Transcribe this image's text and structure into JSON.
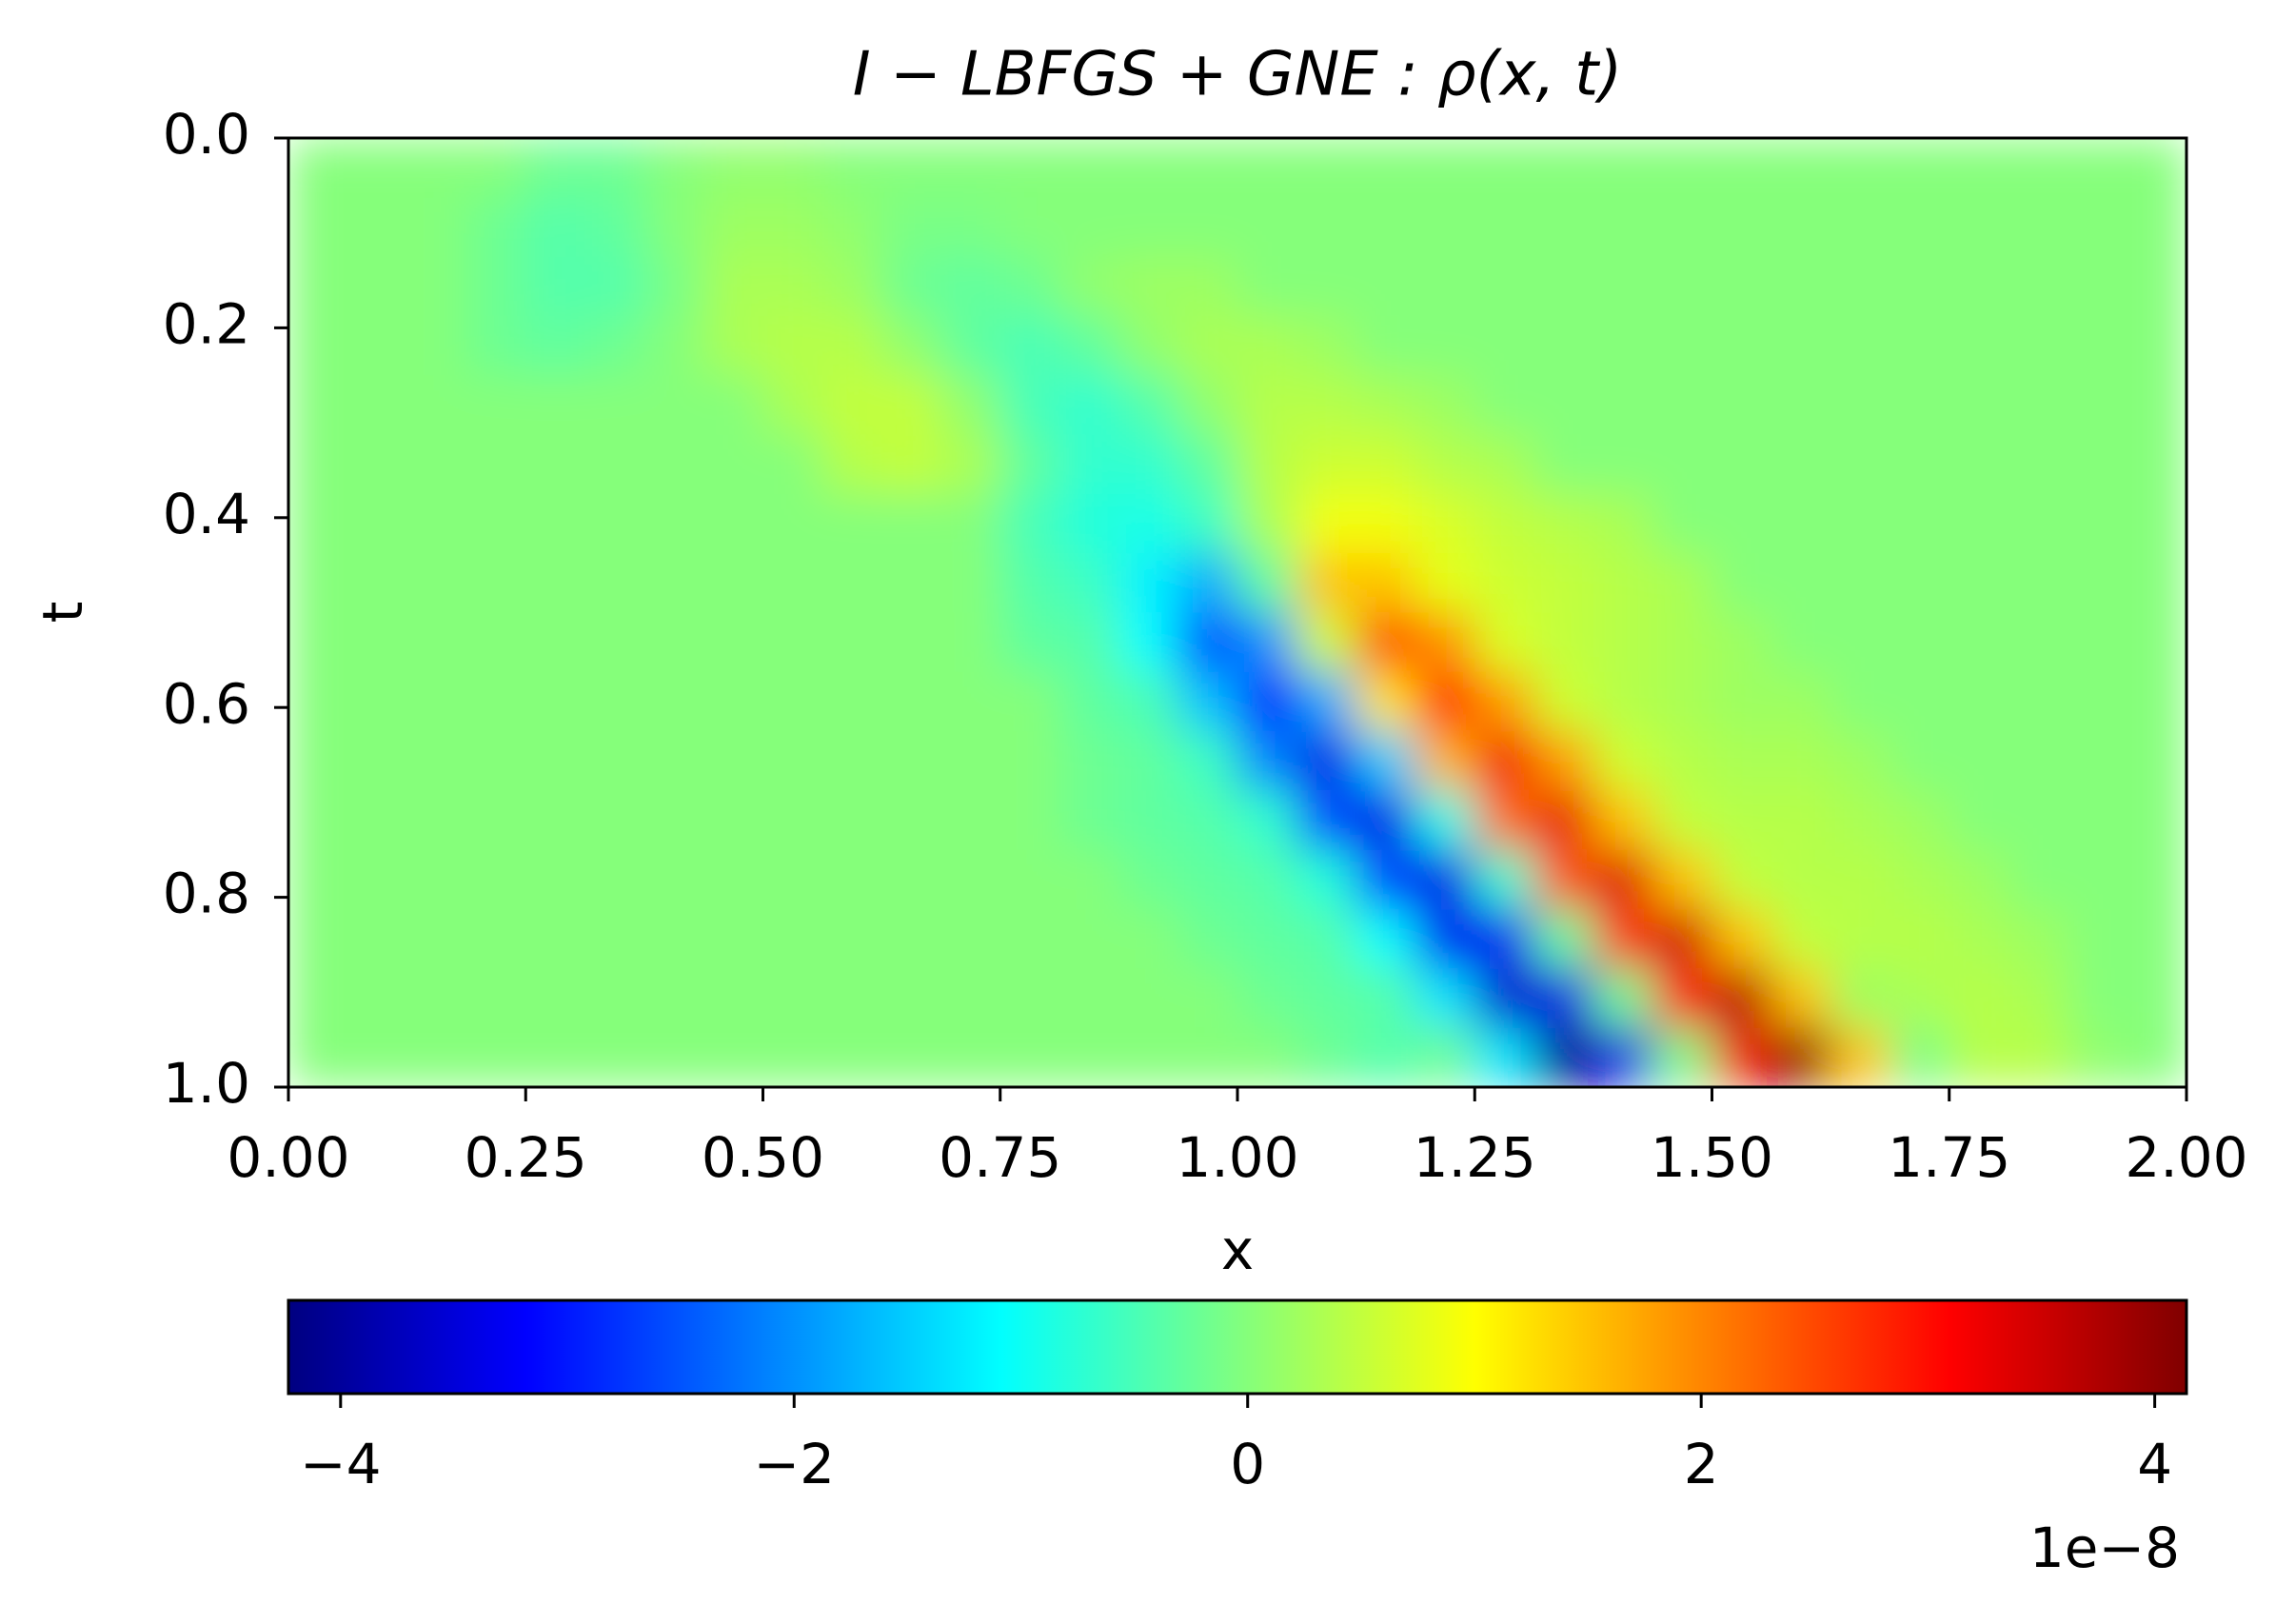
{
  "chart_data": {
    "type": "heatmap",
    "title": "I − LBFGS + GNE : ρ(x, t)",
    "xlabel": "x",
    "ylabel": "t",
    "xlim": [
      0,
      2
    ],
    "ylim": [
      0,
      1
    ],
    "invert_y": true,
    "xticks": [
      {
        "value": 0,
        "label": "0.00"
      },
      0.25,
      {
        "value": 0.5,
        "label": "0.50"
      },
      0.75,
      {
        "value": 1,
        "label": "1.00"
      },
      1.25,
      {
        "value": 1.5,
        "label": "1.50"
      },
      1.75,
      {
        "value": 2,
        "label": "2.00"
      }
    ],
    "yticks": [
      {
        "value": 0,
        "label": "0.0"
      },
      0.2,
      0.4,
      0.6,
      0.8,
      {
        "value": 1,
        "label": "1.0"
      }
    ],
    "colormap": "jet",
    "colorbar": {
      "lim": [
        -4.23,
        4.14
      ],
      "ticks": [
        {
          "value": -4,
          "label": "−4"
        },
        {
          "value": -2,
          "label": "−2"
        },
        0,
        2,
        4
      ],
      "offset_label": "1e−8"
    },
    "z": [
      [
        0,
        0,
        0,
        0,
        -0.2,
        -0.2,
        0,
        0.1,
        0.1,
        0,
        0,
        0,
        0,
        0,
        0,
        0,
        0,
        0,
        0,
        0,
        0,
        0,
        0,
        0,
        0,
        0,
        0,
        0,
        0,
        0,
        0,
        0
      ],
      [
        0,
        0,
        0,
        -0.2,
        -0.4,
        -0.3,
        0,
        0.2,
        0.2,
        0.1,
        -0.1,
        -0.1,
        0,
        0,
        0,
        0,
        0,
        0,
        0,
        0,
        0,
        0,
        0,
        0,
        0,
        0,
        0,
        0,
        0,
        0,
        0,
        0
      ],
      [
        0,
        0,
        0,
        -0.2,
        -0.4,
        -0.4,
        -0.1,
        0.3,
        0.3,
        0.2,
        -0.2,
        -0.3,
        -0.2,
        0.1,
        0.2,
        0.2,
        0,
        0,
        0,
        0,
        0,
        0,
        0,
        0,
        0,
        0,
        0,
        0,
        0,
        0,
        0,
        0
      ],
      [
        0,
        0,
        0,
        -0.2,
        -0.3,
        -0.2,
        0,
        0.3,
        0.4,
        0.4,
        0.1,
        -0.3,
        -0.5,
        -0.3,
        0.1,
        0.3,
        0.3,
        0.2,
        0,
        0,
        0,
        0,
        0,
        0,
        0,
        0,
        0,
        0,
        0,
        0,
        0,
        0
      ],
      [
        0,
        0,
        0,
        0,
        0,
        0,
        0,
        0,
        0.3,
        0.5,
        0.5,
        0.1,
        -0.5,
        -0.7,
        -0.4,
        0.1,
        0.4,
        0.4,
        0.3,
        0.2,
        0,
        0,
        0,
        0,
        0,
        0,
        0,
        0,
        0,
        0,
        0,
        0
      ],
      [
        0,
        0,
        0,
        0,
        0,
        0,
        0,
        0,
        0,
        0.4,
        0.5,
        0.3,
        -0.3,
        -0.7,
        -0.7,
        -0.3,
        0.4,
        0.6,
        0.6,
        0.4,
        0.3,
        0,
        0,
        0,
        0,
        0,
        0,
        0,
        0,
        0,
        0,
        0
      ],
      [
        0,
        0,
        0,
        0,
        0,
        0,
        0,
        0,
        0,
        0,
        0,
        0,
        -0.5,
        -0.8,
        -0.9,
        -0.6,
        0.3,
        0.9,
        0.9,
        0.7,
        0.5,
        0.4,
        0.3,
        0,
        0,
        0,
        0,
        0,
        0,
        0,
        0,
        0
      ],
      [
        0,
        0,
        0,
        0,
        0,
        0,
        0,
        0,
        0,
        0,
        0,
        0,
        -0.4,
        -0.6,
        -1.2,
        -1.8,
        -0.3,
        1.5,
        1.5,
        0.8,
        0.6,
        0.5,
        0.4,
        0.3,
        0,
        0,
        0,
        0,
        0,
        0,
        0,
        0
      ],
      [
        0,
        0,
        0,
        0,
        0,
        0,
        0,
        0,
        0,
        0,
        0,
        0,
        -0.3,
        -0.4,
        -1.1,
        -2.6,
        -2.0,
        0.6,
        2.5,
        1.9,
        0.7,
        0.5,
        0.4,
        0.3,
        0.2,
        0,
        0,
        0,
        0,
        0,
        0,
        0
      ],
      [
        0,
        0,
        0,
        0,
        0,
        0,
        0,
        0,
        0,
        0,
        0,
        0,
        0,
        -0.3,
        -0.5,
        -1.6,
        -3.2,
        -1.8,
        1.2,
        3.0,
        1.8,
        0.6,
        0.4,
        0.3,
        0.2,
        0.2,
        0,
        0,
        0,
        0,
        0,
        0
      ],
      [
        0,
        0,
        0,
        0,
        0,
        0,
        0,
        0,
        0,
        0,
        0,
        0,
        0,
        -0.2,
        -0.3,
        -0.6,
        -2.1,
        -3.4,
        -1.5,
        1.6,
        3.2,
        1.8,
        0.6,
        0.4,
        0.3,
        0.3,
        0.2,
        0,
        0,
        0,
        0,
        0
      ],
      [
        0,
        0,
        0,
        0,
        0,
        0,
        0,
        0,
        0,
        0,
        0,
        0,
        0,
        -0.2,
        -0.3,
        -0.4,
        -0.7,
        -2.6,
        -3.4,
        -0.9,
        2.2,
        3.3,
        1.5,
        0.5,
        0.4,
        0.4,
        0.3,
        0.2,
        0,
        0,
        0,
        0
      ],
      [
        0,
        0,
        0,
        0,
        0,
        0,
        0,
        0,
        0,
        0,
        0,
        0,
        0,
        0,
        -0.2,
        -0.3,
        -0.4,
        -0.8,
        -2.7,
        -3.4,
        -0.7,
        2.4,
        3.4,
        1.5,
        0.5,
        0.4,
        0.4,
        0.3,
        0.2,
        0,
        0,
        0
      ],
      [
        0,
        0,
        0,
        0,
        0,
        0,
        0,
        0,
        0,
        0,
        0,
        0,
        0,
        0,
        0,
        -0.2,
        -0.3,
        -0.4,
        -1.1,
        -3.3,
        -3.3,
        -0.3,
        2.7,
        3.5,
        1.5,
        0.5,
        0.4,
        0.4,
        0.3,
        0.2,
        0,
        0
      ],
      [
        0,
        0,
        0,
        0,
        0,
        0,
        0,
        0,
        0,
        0,
        0,
        0,
        0,
        0,
        0,
        0,
        -0.2,
        -0.3,
        -0.4,
        -1.3,
        -3.6,
        -3.4,
        -0.2,
        3.0,
        3.7,
        1.5,
        0.2,
        0.3,
        0.4,
        0.3,
        0,
        0
      ],
      [
        0,
        0,
        0,
        0,
        0,
        0,
        0,
        0,
        0,
        0,
        0,
        0,
        0,
        0,
        0,
        0,
        0,
        -0.2,
        -0.4,
        -0.2,
        -1.3,
        -4.1,
        -3.4,
        -0.1,
        3.2,
        4.0,
        1.5,
        -0.1,
        0.4,
        0.4,
        0.1,
        0
      ]
    ]
  }
}
